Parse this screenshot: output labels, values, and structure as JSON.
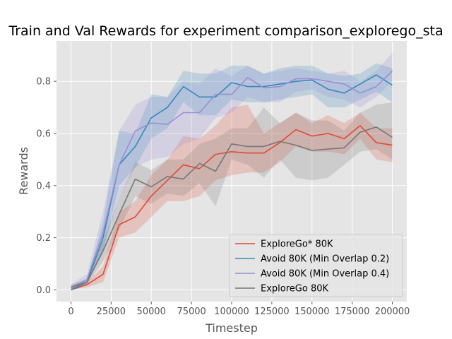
{
  "chart_data": {
    "type": "line",
    "title": "Train and Val Rewards for experiment comparison_explorego_sta",
    "xlabel": "Timestep",
    "ylabel": "Rewards",
    "xlim": [
      -9000,
      209000
    ],
    "ylim": [
      -0.045,
      0.955
    ],
    "xticks": [
      0,
      25000,
      50000,
      75000,
      100000,
      125000,
      150000,
      175000,
      200000
    ],
    "yticks": [
      0.0,
      0.2,
      0.4,
      0.6,
      0.8
    ],
    "grid": true,
    "legend_position": "lower-right",
    "x": [
      0,
      10000,
      20000,
      30000,
      40000,
      50000,
      60000,
      70000,
      80000,
      90000,
      100000,
      110000,
      120000,
      130000,
      140000,
      150000,
      160000,
      170000,
      180000,
      190000,
      200000
    ],
    "series": [
      {
        "name": "ExploreGo* 80K",
        "color": "#E24A33",
        "values": [
          0.0,
          0.02,
          0.06,
          0.25,
          0.28,
          0.36,
          0.42,
          0.48,
          0.465,
          0.52,
          0.53,
          0.525,
          0.525,
          0.565,
          0.615,
          0.59,
          0.6,
          0.58,
          0.63,
          0.565,
          0.555
        ],
        "lower": [
          0.0,
          0.01,
          0.03,
          0.2,
          0.22,
          0.28,
          0.34,
          0.34,
          0.36,
          0.42,
          0.44,
          0.45,
          0.45,
          0.49,
          0.55,
          0.53,
          0.53,
          0.52,
          0.58,
          0.5,
          0.49
        ],
        "upper": [
          0.01,
          0.03,
          0.09,
          0.3,
          0.34,
          0.44,
          0.5,
          0.59,
          0.58,
          0.63,
          0.7,
          0.71,
          0.6,
          0.64,
          0.68,
          0.64,
          0.67,
          0.64,
          0.68,
          0.62,
          0.62
        ]
      },
      {
        "name": "Avoid 80K (Min Overlap 0.2)",
        "color": "#348ABD",
        "values": [
          0.0,
          0.03,
          0.2,
          0.48,
          0.55,
          0.66,
          0.7,
          0.78,
          0.74,
          0.74,
          0.795,
          0.78,
          0.78,
          0.79,
          0.8,
          0.805,
          0.77,
          0.755,
          0.79,
          0.825,
          0.785
        ],
        "lower": [
          0.0,
          0.02,
          0.15,
          0.4,
          0.47,
          0.58,
          0.62,
          0.72,
          0.67,
          0.67,
          0.73,
          0.72,
          0.72,
          0.73,
          0.74,
          0.75,
          0.7,
          0.7,
          0.73,
          0.76,
          0.72
        ],
        "upper": [
          0.01,
          0.04,
          0.26,
          0.61,
          0.6,
          0.75,
          0.74,
          0.84,
          0.83,
          0.83,
          0.86,
          0.86,
          0.83,
          0.85,
          0.86,
          0.86,
          0.83,
          0.82,
          0.83,
          0.87,
          0.85
        ]
      },
      {
        "name": "Avoid 80K (Min Overlap 0.4)",
        "color": "#988ED5",
        "values": [
          0.01,
          0.04,
          0.22,
          0.48,
          0.61,
          0.64,
          0.635,
          0.68,
          0.68,
          0.75,
          0.75,
          0.815,
          0.775,
          0.78,
          0.81,
          0.81,
          0.8,
          0.79,
          0.755,
          0.78,
          0.84
        ],
        "lower": [
          0.0,
          0.02,
          0.15,
          0.35,
          0.47,
          0.5,
          0.51,
          0.56,
          0.58,
          0.66,
          0.68,
          0.74,
          0.72,
          0.72,
          0.76,
          0.77,
          0.74,
          0.73,
          0.7,
          0.74,
          0.8
        ],
        "upper": [
          0.02,
          0.06,
          0.3,
          0.61,
          0.71,
          0.74,
          0.74,
          0.8,
          0.79,
          0.85,
          0.82,
          0.86,
          0.83,
          0.84,
          0.85,
          0.84,
          0.83,
          0.84,
          0.8,
          0.84,
          0.91
        ]
      },
      {
        "name": "ExploreGo 80K",
        "color": "#777777",
        "values": [
          0.01,
          0.03,
          0.15,
          0.29,
          0.425,
          0.395,
          0.435,
          0.425,
          0.485,
          0.455,
          0.56,
          0.55,
          0.55,
          0.57,
          0.555,
          0.535,
          0.54,
          0.545,
          0.605,
          0.625,
          0.585
        ],
        "lower": [
          0.0,
          0.02,
          0.11,
          0.23,
          0.36,
          0.33,
          0.37,
          0.36,
          0.41,
          0.32,
          0.5,
          0.48,
          0.43,
          0.5,
          0.43,
          0.42,
          0.43,
          0.48,
          0.53,
          0.54,
          0.5
        ],
        "upper": [
          0.02,
          0.04,
          0.19,
          0.35,
          0.49,
          0.46,
          0.5,
          0.5,
          0.56,
          0.58,
          0.62,
          0.62,
          0.7,
          0.64,
          0.68,
          0.65,
          0.65,
          0.61,
          0.68,
          0.71,
          0.72
        ]
      }
    ]
  }
}
